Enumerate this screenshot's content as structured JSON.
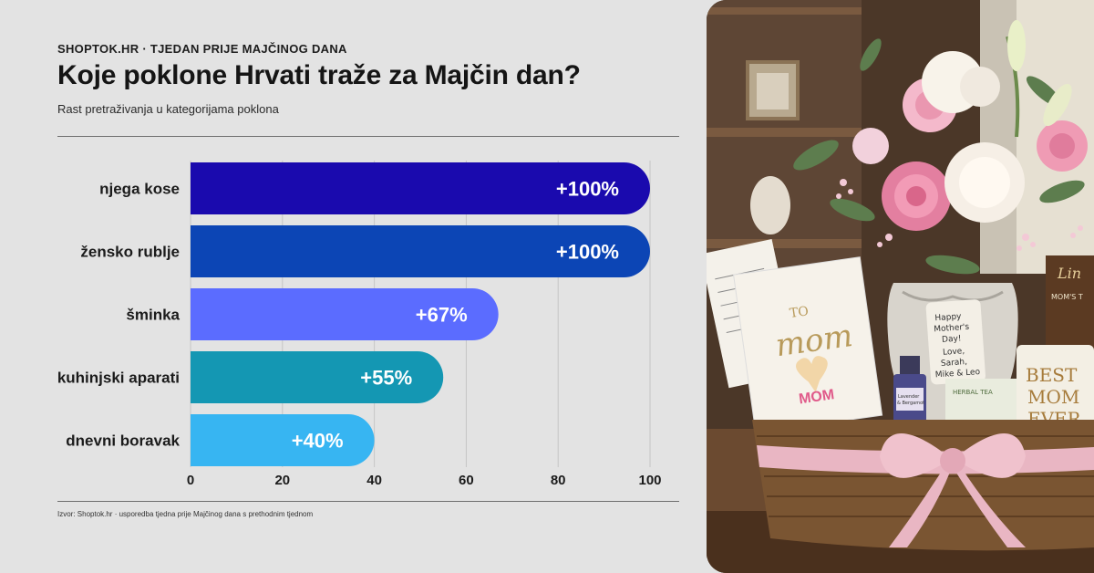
{
  "header": {
    "kicker": "SHOPTOK.HR · TJEDAN PRIJE MAJČINOG DANA",
    "title": "Koje poklone Hrvati traže za Majčin dan?",
    "subtitle": "Rast pretraživanja u kategorijama poklona"
  },
  "footer": {
    "source": "Izvor: Shoptok.hr · usporedba tjedna prije Majčinog dana s prethodnim tjednom"
  },
  "chart_data": {
    "type": "bar",
    "orientation": "horizontal",
    "categories": [
      "njega kose",
      "žensko rublje",
      "šminka",
      "kuhinjski aparati",
      "dnevni boravak"
    ],
    "values": [
      100,
      100,
      67,
      55,
      40
    ],
    "value_labels": [
      "+100%",
      "+100%",
      "+67%",
      "+55%",
      "+40%"
    ],
    "bar_colors": [
      "#1a0aae",
      "#0c45b5",
      "#5b6cff",
      "#1497b3",
      "#37b5f2"
    ],
    "xlim": [
      0,
      100
    ],
    "xticks": [
      0,
      20,
      40,
      60,
      80,
      100
    ],
    "grid": true
  },
  "photo": {
    "card_text": "TO mom",
    "heart_text": "MOM",
    "tag_text": [
      "Happy",
      "Mother's",
      "Day!",
      "Love,",
      "Sarah,",
      "Mike & Leo"
    ],
    "mug_text": [
      "BEST",
      "MOM",
      "EVER"
    ],
    "tea_text": "HERBAL TEA",
    "box_text": [
      "Lin",
      "MOM'S T"
    ],
    "bottle_text": [
      "Lavender",
      "& Bergamot"
    ]
  }
}
